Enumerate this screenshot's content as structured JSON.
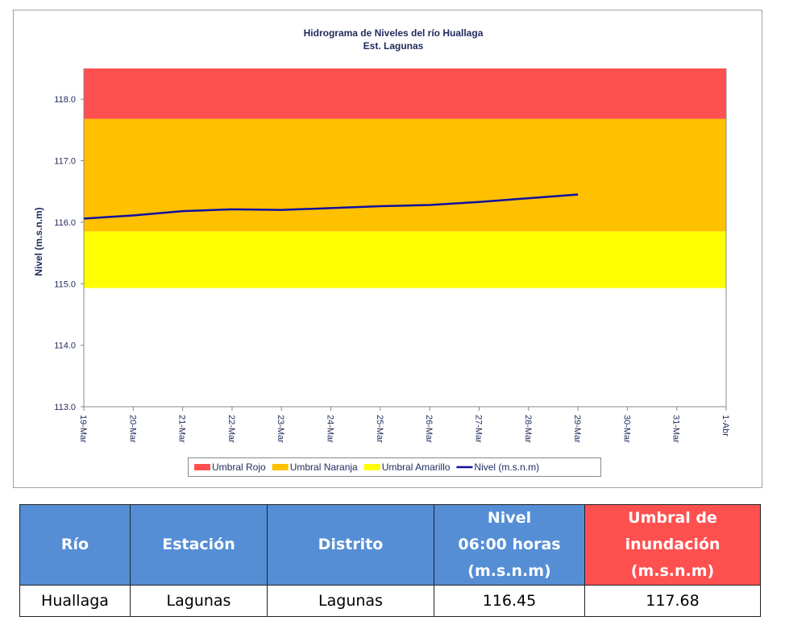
{
  "chart_data": {
    "type": "line",
    "title": "Hidrograma de Niveles del río Huallaga",
    "subtitle": "Est. Lagunas",
    "y_label": "Nivel (m.s.n.m)",
    "categories": [
      "19-Mar",
      "20-Mar",
      "21-Mar",
      "22-Mar",
      "23-Mar",
      "24-Mar",
      "25-Mar",
      "26-Mar",
      "27-Mar",
      "28-Mar",
      "29-Mar",
      "30-Mar",
      "31-Mar",
      "1-Abr"
    ],
    "thresholds": [
      {
        "name": "Umbral Rojo",
        "color": "#ff5050",
        "value": 117.68
      },
      {
        "name": "Umbral Naranja",
        "color": "#ffc000",
        "value": 115.85
      },
      {
        "name": "Umbral Amarillo",
        "color": "#ffff00",
        "value": 114.93
      }
    ],
    "series": [
      {
        "name": "Nivel (m.s.n.m)",
        "color": "#1010a0",
        "values": [
          116.06,
          116.11,
          116.18,
          116.21,
          116.2,
          116.23,
          116.26,
          116.28,
          116.33,
          116.39,
          116.45,
          null,
          null,
          null
        ]
      }
    ],
    "ylim": [
      113,
      118.5
    ],
    "yticks": [
      {
        "value": 113,
        "label": "113.0"
      },
      {
        "value": 114,
        "label": "114.0"
      },
      {
        "value": 115,
        "label": "115.0"
      },
      {
        "value": 116,
        "label": "116.0"
      },
      {
        "value": 117,
        "label": "117.0"
      },
      {
        "value": 118,
        "label": "118.0"
      }
    ],
    "legend": "bottom"
  },
  "table": {
    "headers": [
      "Río",
      "Estación",
      "Distrito",
      "Nivel\n06:00 horas\n(m.s.n.m)",
      "Umbral de\ninundación\n(m.s.n.m)"
    ],
    "rows": [
      [
        "Huallaga",
        "Lagunas",
        "Lagunas",
        "116.45",
        "117.68"
      ]
    ]
  }
}
